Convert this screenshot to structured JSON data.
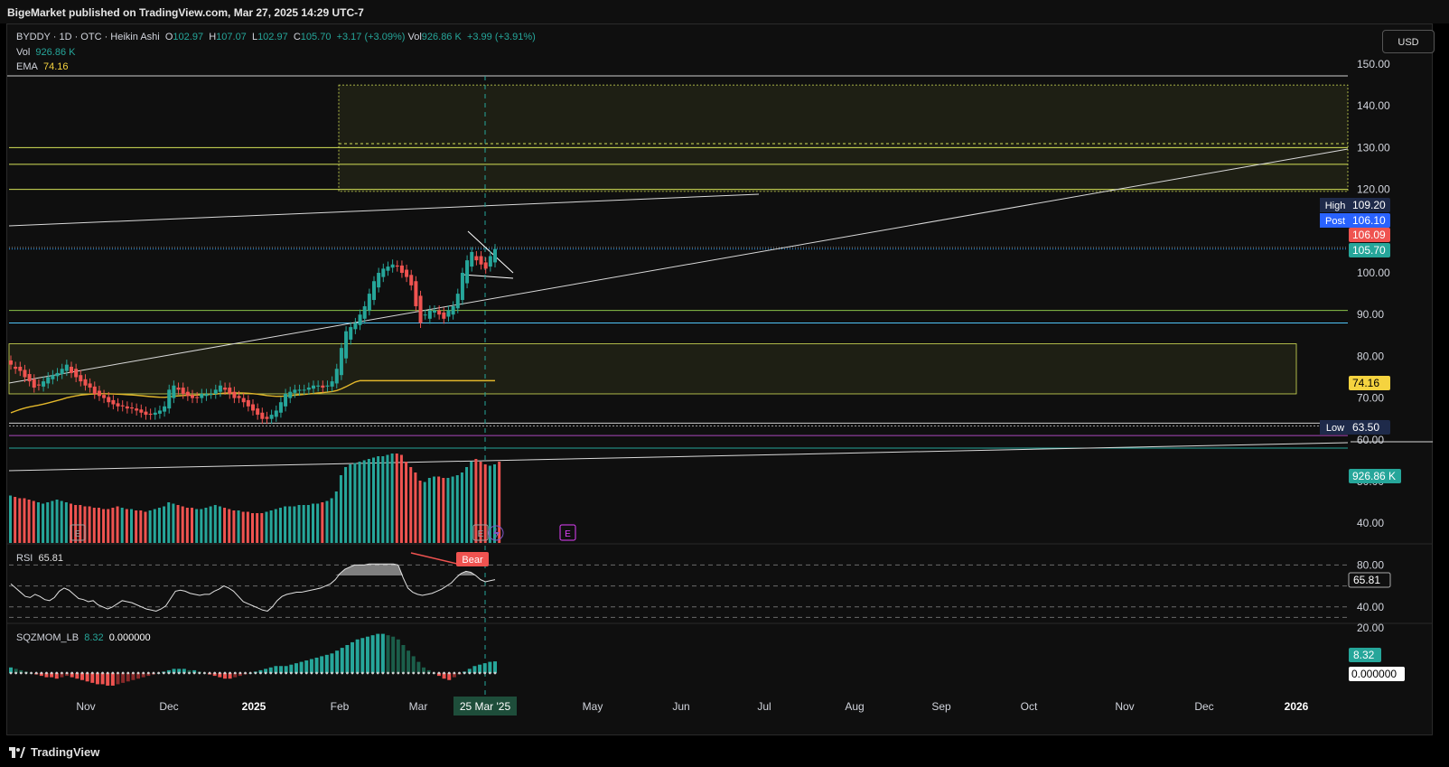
{
  "header": {
    "published": "BigeMarket published on TradingView.com, Mar 27, 2025 14:29 UTC-7"
  },
  "legend": {
    "symbol": "BYDDY · 1D · OTC · Heikin Ashi",
    "open_label": "O",
    "open": "102.97",
    "high_label": "H",
    "high": "107.07",
    "low_label": "L",
    "low": "102.97",
    "close_label": "C",
    "close": "105.70",
    "change": "+3.17 (+3.09%)",
    "vol_label": "Vol",
    "vol": "926.86 K",
    "vol_change": "+3.99 (+3.91%)",
    "vol_line_label": "Vol",
    "vol_line_value": "926.86 K",
    "ema_label": "EMA",
    "ema_value": "74.16"
  },
  "currency_button": "USD",
  "rsi_legend": {
    "label": "RSI",
    "value": "65.81"
  },
  "sqz_legend": {
    "label": "SQZMOM_LB",
    "value1": "8.32",
    "value2": "0.000000"
  },
  "colors": {
    "up": "#26a69a",
    "down": "#ef5350",
    "ema": "#e2b72b",
    "zone": "#d4e157",
    "bg": "#0f0f0f"
  },
  "branding": "TradingView",
  "chart_data": [
    {
      "type": "candlestick",
      "series_name": "BYDDY Heikin Ashi",
      "y_axis": {
        "ticks": [
          40,
          50,
          60,
          70,
          80,
          90,
          100,
          110,
          120,
          130,
          140,
          150
        ],
        "labels": [
          "40.00",
          "50.00",
          "60.00",
          "70.00",
          "80.00",
          "90.00",
          "100.00",
          "110.00",
          "120.00",
          "130.00",
          "140.00",
          "150.00"
        ],
        "range": [
          37,
          153
        ]
      },
      "x_axis": {
        "labels": [
          "Nov",
          "Dec",
          "2025",
          "Feb",
          "Mar",
          "Apr",
          "May",
          "Jun",
          "Jul",
          "Aug",
          "Sep",
          "Oct",
          "Nov",
          "Dec",
          "2026"
        ],
        "crosshair_label": "25 Mar '25"
      },
      "price_labels": [
        {
          "tag": "High",
          "value": "109.20",
          "color": "#1e2a4a"
        },
        {
          "tag": "Post",
          "value": "106.10",
          "color": "#2962ff"
        },
        {
          "tag": "",
          "value": "106.09",
          "color": "#ef5350"
        },
        {
          "tag": "",
          "value": "105.70",
          "color": "#26a69a"
        },
        {
          "tag": "",
          "value": "74.16",
          "color": "#f5d33f"
        },
        {
          "tag": "Low",
          "value": "63.50",
          "color": "#1e2a4a"
        },
        {
          "tag": "",
          "value": "926.86 K",
          "color": "#26a69a"
        }
      ],
      "horizontal_levels": [
        130,
        126,
        120,
        91,
        88,
        64,
        63.3,
        61,
        58
      ],
      "zones": [
        {
          "name": "upper-zone",
          "from": 119.5,
          "to": 145
        },
        {
          "name": "lower-zone",
          "from": 71,
          "to": 83
        }
      ],
      "ema_last": 74.16,
      "close_series": [
        78,
        77,
        76.5,
        75,
        74,
        72.5,
        73,
        74,
        75,
        75.5,
        76,
        77,
        78,
        76,
        75,
        74,
        73,
        72.5,
        71,
        70.5,
        70,
        69,
        68.5,
        68,
        68,
        67.5,
        67.5,
        67,
        66.5,
        66,
        66,
        66.5,
        67,
        68,
        72,
        73,
        72,
        71,
        70.5,
        70,
        70,
        71,
        71,
        71,
        72,
        73,
        72,
        71,
        70,
        70,
        69,
        68,
        67,
        66,
        65,
        65,
        66,
        67,
        69,
        71,
        71.5,
        72,
        72,
        72,
        72.5,
        73,
        73,
        72.5,
        73,
        74,
        77,
        82,
        86,
        87,
        88,
        90,
        92,
        95,
        98,
        100,
        101,
        101.5,
        102,
        101.5,
        100,
        99,
        97,
        92,
        88,
        90,
        91,
        91,
        90,
        89,
        91,
        92,
        95,
        100,
        103,
        105,
        103,
        102,
        101,
        104,
        105.7
      ]
    },
    {
      "type": "line",
      "series_name": "RSI",
      "y_axis": {
        "ticks": [
          20,
          40,
          60,
          80
        ],
        "labels": [
          "20.00",
          "40.00",
          "",
          "80.00"
        ]
      },
      "last": 65.81,
      "divergence_label": "Bear",
      "values": [
        62,
        58,
        54,
        50,
        49,
        52,
        50,
        47,
        46,
        49,
        55,
        58,
        56,
        52,
        48,
        47,
        45,
        46,
        42,
        40,
        38,
        40,
        43,
        46,
        45,
        44,
        42,
        40,
        38,
        37,
        36,
        38,
        41,
        48,
        55,
        56,
        55,
        53,
        52,
        51,
        52,
        52,
        55,
        57,
        60,
        58,
        55,
        50,
        45,
        43,
        41,
        39,
        37,
        36,
        40,
        46,
        50,
        52,
        53,
        54,
        54,
        55,
        56,
        57,
        58,
        60,
        62,
        66,
        72,
        76,
        78,
        80,
        80,
        80,
        81,
        81,
        81,
        81,
        81,
        81,
        80,
        68,
        58,
        54,
        52,
        51,
        52,
        53,
        55,
        57,
        60,
        63,
        68,
        72,
        74,
        73,
        70,
        66,
        64,
        65,
        66
      ]
    },
    {
      "type": "bar",
      "series_name": "SQZMOM_LB",
      "last": 8.32,
      "values": [
        4,
        3,
        2,
        1,
        0,
        -1,
        -2,
        -3,
        -3,
        -4,
        -3,
        -2,
        -3,
        -4,
        -5,
        -6,
        -7,
        -8,
        -8,
        -9,
        -9,
        -8,
        -7,
        -6,
        -5,
        -4,
        -3,
        -2,
        -1,
        0,
        1,
        2,
        3,
        3,
        3,
        2,
        2,
        1,
        0,
        -1,
        -2,
        -3,
        -4,
        -4,
        -3,
        -2,
        -1,
        0,
        1,
        2,
        3,
        4,
        5,
        5,
        5,
        6,
        7,
        8,
        9,
        10,
        11,
        12,
        13,
        14,
        16,
        18,
        20,
        22,
        24,
        25,
        26,
        27,
        28,
        28,
        27,
        26,
        24,
        20,
        16,
        12,
        8,
        4,
        2,
        0,
        -2,
        -4,
        -5,
        -3,
        -1,
        1,
        3,
        5,
        6,
        7,
        8,
        8.32
      ]
    },
    {
      "type": "bar",
      "series_name": "Vol",
      "last": "926.86 K",
      "values": [
        35,
        34,
        33,
        33,
        32,
        31,
        30,
        29,
        30,
        31,
        32,
        31,
        30,
        29,
        28,
        28,
        27,
        27,
        26,
        26,
        25,
        25,
        26,
        27,
        26,
        25,
        25,
        24,
        24,
        23,
        24,
        25,
        26,
        27,
        30,
        29,
        28,
        27,
        26,
        26,
        25,
        25,
        26,
        27,
        28,
        27,
        26,
        25,
        24,
        24,
        23,
        23,
        22,
        22,
        22,
        23,
        24,
        25,
        26,
        27,
        27,
        27,
        28,
        28,
        28,
        29,
        29,
        30,
        31,
        33,
        38,
        50,
        56,
        58,
        59,
        60,
        61,
        62,
        63,
        64,
        64,
        65,
        66,
        66,
        65,
        60,
        56,
        52,
        46,
        45,
        48,
        49,
        49,
        48,
        48,
        49,
        50,
        52,
        56,
        60,
        62,
        60,
        58,
        57,
        58,
        60
      ]
    }
  ]
}
